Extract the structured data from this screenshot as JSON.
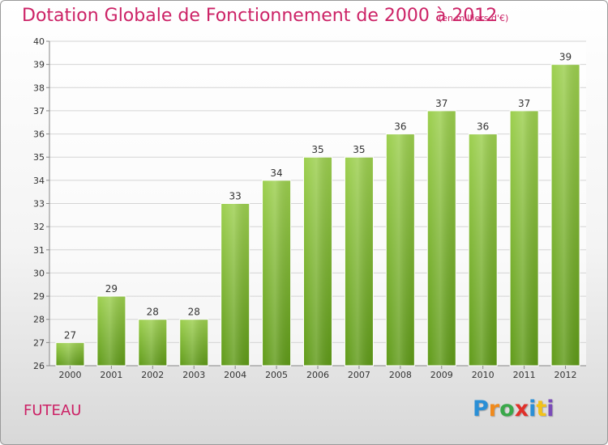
{
  "header": {
    "title": "Dotation Globale de Fonctionnement de 2000 à 2012",
    "subtitle": "(en milliers d'€)"
  },
  "footer": {
    "commune": "FUTEAU",
    "logo": "Proxiti",
    "logo_letters": [
      "P",
      "r",
      "o",
      "x",
      "i",
      "t",
      "i"
    ]
  },
  "colors": {
    "title": "#cc2266",
    "bar_top": "#9ccf4e",
    "bar_bottom": "#5f9a18",
    "grid": "#d4d4d4",
    "axis_text": "#333333"
  },
  "chart_data": {
    "type": "bar",
    "title": "Dotation Globale de Fonctionnement de 2000 à 2012",
    "subtitle": "(en milliers d'€)",
    "categories": [
      "2000",
      "2001",
      "2002",
      "2003",
      "2004",
      "2005",
      "2006",
      "2007",
      "2008",
      "2009",
      "2010",
      "2011",
      "2012"
    ],
    "values": [
      27,
      29,
      28,
      28,
      33,
      34,
      35,
      35,
      36,
      37,
      36,
      37,
      39
    ],
    "xlabel": "",
    "ylabel": "",
    "ylim": [
      26,
      40
    ],
    "yticks": [
      26,
      27,
      28,
      29,
      30,
      31,
      32,
      33,
      34,
      35,
      36,
      37,
      38,
      39,
      40
    ],
    "grid": true,
    "data_labels": true
  }
}
